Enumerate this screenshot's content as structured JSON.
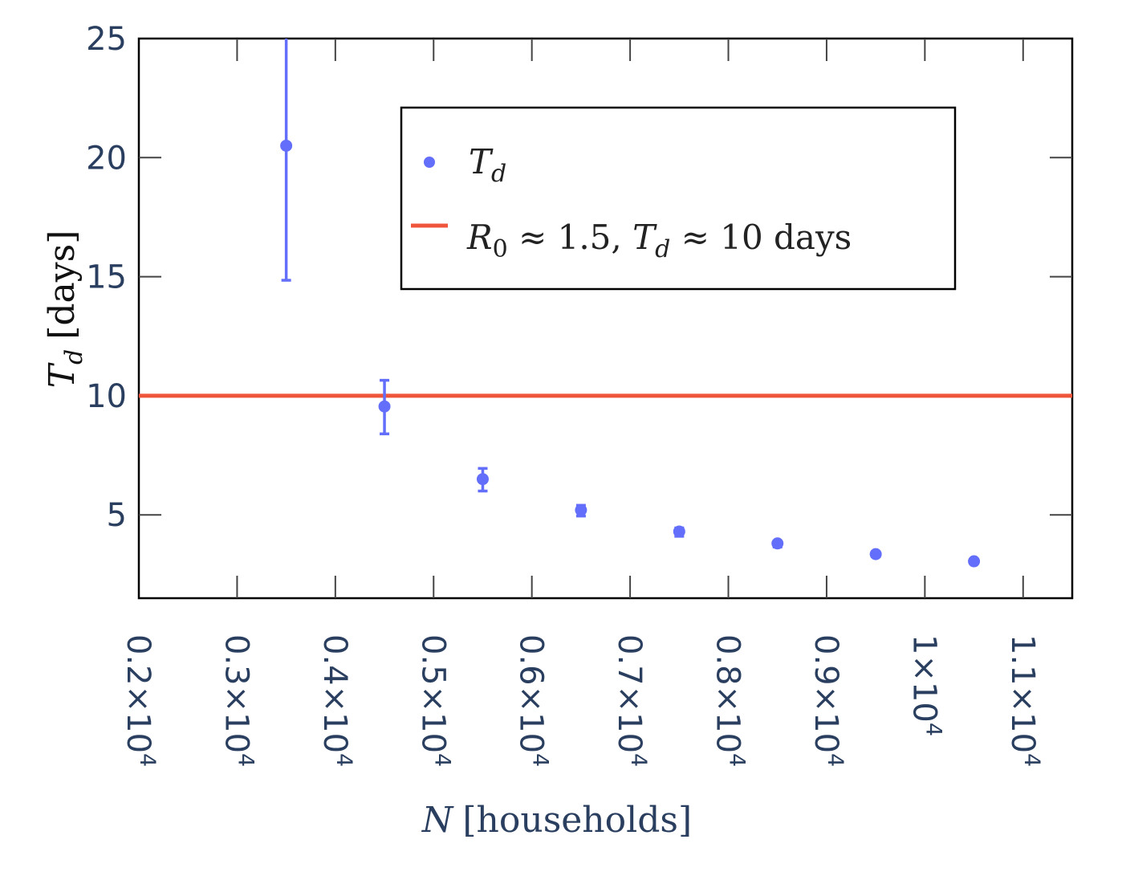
{
  "chart_data": {
    "type": "scatter",
    "x_label": {
      "var": "N",
      "unit": "[households]"
    },
    "y_label": {
      "var": "T",
      "sub": "d",
      "unit": "[days]"
    },
    "xlim": [
      2000,
      11500
    ],
    "ylim": [
      1.5,
      25
    ],
    "x_ticks": [
      {
        "value": 2000,
        "mant": "0.2×10",
        "exp": "4"
      },
      {
        "value": 3000,
        "mant": "0.3×10",
        "exp": "4"
      },
      {
        "value": 4000,
        "mant": "0.4×10",
        "exp": "4"
      },
      {
        "value": 5000,
        "mant": "0.5×10",
        "exp": "4"
      },
      {
        "value": 6000,
        "mant": "0.6×10",
        "exp": "4"
      },
      {
        "value": 7000,
        "mant": "0.7×10",
        "exp": "4"
      },
      {
        "value": 8000,
        "mant": "0.8×10",
        "exp": "4"
      },
      {
        "value": 9000,
        "mant": "0.9×10",
        "exp": "4"
      },
      {
        "value": 10000,
        "mant": "1×10",
        "exp": "4"
      },
      {
        "value": 11000,
        "mant": "1.1×10",
        "exp": "4"
      }
    ],
    "y_ticks": [
      {
        "value": 5,
        "label": "5"
      },
      {
        "value": 10,
        "label": "10"
      },
      {
        "value": 15,
        "label": "15"
      },
      {
        "value": 20,
        "label": "20"
      },
      {
        "value": 25,
        "label": "25"
      }
    ],
    "series": [
      {
        "name": "T_d",
        "color": "#636efa",
        "points": [
          {
            "x": 3500,
            "y": 20.5,
            "err_low": 14.85,
            "err_high": 25.5
          },
          {
            "x": 4500,
            "y": 9.55,
            "err_low": 8.4,
            "err_high": 10.65
          },
          {
            "x": 5500,
            "y": 6.5,
            "err_low": 6.0,
            "err_high": 6.95
          },
          {
            "x": 6500,
            "y": 5.2,
            "err_low": 4.95,
            "err_high": 5.4
          },
          {
            "x": 7500,
            "y": 4.3,
            "err_low": 4.1,
            "err_high": 4.45
          },
          {
            "x": 8500,
            "y": 3.8,
            "err_low": 3.65,
            "err_high": 3.9
          },
          {
            "x": 9500,
            "y": 3.35,
            "err_low": 3.25,
            "err_high": 3.45
          },
          {
            "x": 10500,
            "y": 3.05,
            "err_low": 2.95,
            "err_high": 3.12
          }
        ]
      }
    ],
    "reference_line": {
      "y": 10,
      "color": "#ef553b"
    },
    "legend": {
      "position": "top-right",
      "entries": [
        {
          "kind": "marker",
          "color": "#636efa",
          "var": "T",
          "sub": "d"
        },
        {
          "kind": "line",
          "color": "#ef553b",
          "parts": [
            "R",
            "0",
            " ≈ 1.5, ",
            "T",
            "d",
            " ≈ 10 days"
          ]
        }
      ]
    },
    "grid": false
  }
}
